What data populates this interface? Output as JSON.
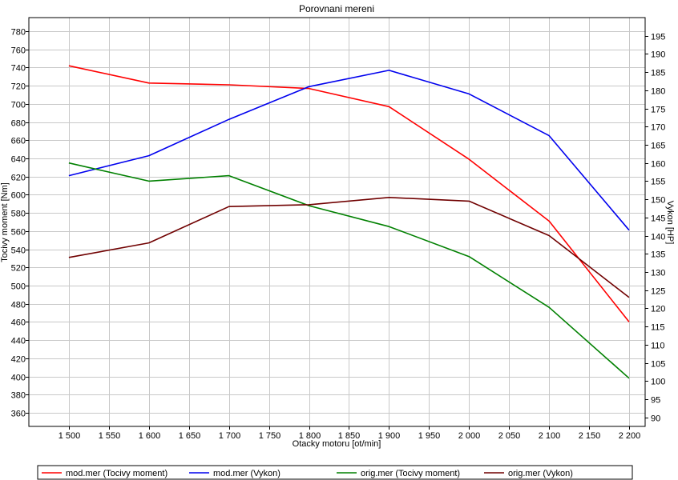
{
  "chart_data": {
    "type": "line",
    "title": "Porovnani mereni",
    "xlabel": "Otacky motoru [ot/min]",
    "ylabel": "Tocivy moment [Nm]",
    "y2label": "Vykon [HP]",
    "x": [
      1500,
      1600,
      1700,
      1800,
      1900,
      2000,
      2100,
      2200
    ],
    "xlim": [
      1450,
      2220
    ],
    "ylim": [
      345,
      795
    ],
    "y2lim": [
      87.5,
      200
    ],
    "x_ticks": [
      1500,
      1550,
      1600,
      1650,
      1700,
      1750,
      1800,
      1850,
      1900,
      1950,
      2000,
      2050,
      2100,
      2150,
      2200
    ],
    "x_tick_labels": [
      "1 500",
      "1 550",
      "1 600",
      "1 650",
      "1 700",
      "1 750",
      "1 800",
      "1 850",
      "1 900",
      "1 950",
      "2 000",
      "2 050",
      "2 100",
      "2 150",
      "2 200"
    ],
    "y_ticks": [
      360,
      380,
      400,
      420,
      440,
      460,
      480,
      500,
      520,
      540,
      560,
      580,
      600,
      620,
      640,
      660,
      680,
      700,
      720,
      740,
      760,
      780
    ],
    "y_tick_labels": [
      "360",
      "380",
      "400",
      "420",
      "440",
      "460",
      "480",
      "500",
      "520",
      "540",
      "560",
      "580",
      "600",
      "620",
      "640",
      "660",
      "680",
      "700",
      "720",
      "740",
      "760",
      "780"
    ],
    "y2_ticks": [
      90,
      95,
      100,
      105,
      110,
      115,
      120,
      125,
      130,
      135,
      140,
      145,
      150,
      155,
      160,
      165,
      170,
      175,
      180,
      185,
      190,
      195
    ],
    "y2_tick_labels": [
      "90",
      "95",
      "100",
      "105",
      "110",
      "115",
      "120",
      "125",
      "130",
      "135",
      "140",
      "145",
      "150",
      "155",
      "160",
      "165",
      "170",
      "175",
      "180",
      "185",
      "190",
      "195"
    ],
    "grid": true,
    "legend_position": "bottom",
    "series": [
      {
        "name": "mod.mer  (Tocivy moment)",
        "axis": "left",
        "color": "#ff0000",
        "values": [
          742,
          723,
          721,
          717,
          697,
          639,
          571,
          460
        ]
      },
      {
        "name": "mod.mer  (Vykon)",
        "axis": "right",
        "color": "#0000ee",
        "values": [
          156.5,
          162,
          172,
          181,
          185.5,
          179,
          167.5,
          141.5
        ]
      },
      {
        "name": "orig.mer  (Tocivy moment)",
        "axis": "left",
        "color": "#008000",
        "values": [
          635,
          615,
          621,
          588,
          565,
          532,
          476,
          398
        ]
      },
      {
        "name": "orig.mer  (Vykon)",
        "axis": "right",
        "color": "#700000",
        "values": [
          134,
          138,
          148,
          148.5,
          150.5,
          149.5,
          140,
          123
        ]
      }
    ]
  }
}
